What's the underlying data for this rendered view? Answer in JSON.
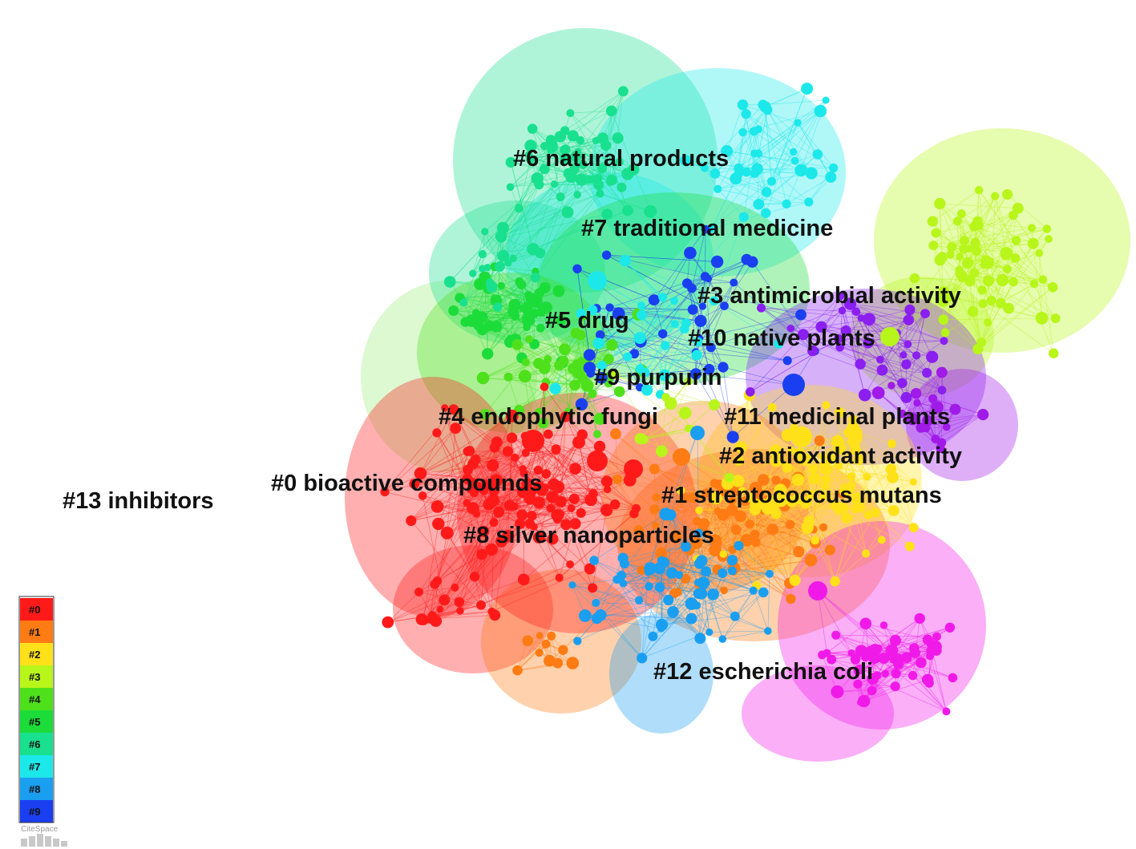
{
  "clusters": [
    {
      "id": "#0",
      "name": "bioactive compounds",
      "label": "#0 bioactive compounds",
      "color": "#ff1a1a"
    },
    {
      "id": "#1",
      "name": "streptococcus mutans",
      "label": "#1 streptococcus mutans",
      "color": "#ff7b14"
    },
    {
      "id": "#2",
      "name": "antioxidant activity",
      "label": "#2 antioxidant activity",
      "color": "#ffe11a"
    },
    {
      "id": "#3",
      "name": "antimicrobial activity",
      "label": "#3 antimicrobial activity",
      "color": "#b8f51a"
    },
    {
      "id": "#4",
      "name": "endophytic fungi",
      "label": "#4 endophytic fungi",
      "color": "#4fe01c"
    },
    {
      "id": "#5",
      "name": "drug",
      "label": "#5 drug",
      "color": "#1cdc3a"
    },
    {
      "id": "#6",
      "name": "natural products",
      "label": "#6 natural products",
      "color": "#19e08e"
    },
    {
      "id": "#7",
      "name": "traditional medicine",
      "label": "#7 traditional medicine",
      "color": "#1ce8ea"
    },
    {
      "id": "#8",
      "name": "silver nanoparticles",
      "label": "#8 silver nanoparticles",
      "color": "#1a9ef0"
    },
    {
      "id": "#9",
      "name": "purpurin",
      "label": "#9 purpurin",
      "color": "#1a3ff0"
    },
    {
      "id": "#10",
      "name": "native plants",
      "label": "#10 native plants",
      "color": "#8a1ff0"
    },
    {
      "id": "#11",
      "name": "medicinal plants",
      "label": "#11 medicinal plants",
      "color": "#a01ae8"
    },
    {
      "id": "#12",
      "name": "escherichia coli",
      "label": "#12 escherichia coli",
      "color": "#f01ae8"
    },
    {
      "id": "#13",
      "name": "inhibitors",
      "label": "#13 inhibitors",
      "color": "#9aee7a"
    }
  ],
  "legend": {
    "items": [
      "#0",
      "#1",
      "#2",
      "#3",
      "#4",
      "#5",
      "#6",
      "#7",
      "#8",
      "#9"
    ],
    "colors": [
      "#ff1a1a",
      "#ff7b14",
      "#ffe11a",
      "#b8f51a",
      "#4fe01c",
      "#1cdc3a",
      "#19e08e",
      "#1ce8ea",
      "#1a9ef0",
      "#1a3ff0"
    ]
  },
  "logo": {
    "text": "CiteSpace"
  }
}
